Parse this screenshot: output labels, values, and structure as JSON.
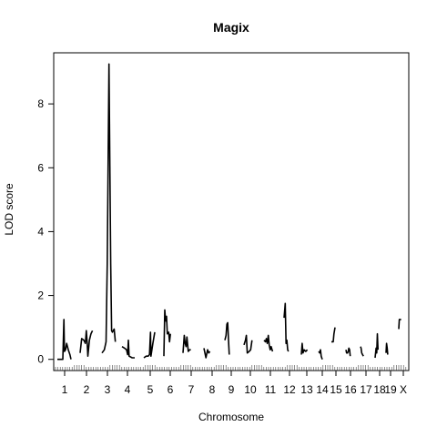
{
  "chart_data": {
    "type": "line",
    "title": "Magix",
    "xlabel": "Chromosome",
    "ylabel": "LOD score",
    "ylim": [
      -0.35,
      9.6
    ],
    "yticks": [
      0,
      2,
      4,
      6,
      8
    ],
    "grid": false,
    "chromosomes": [
      {
        "name": "1",
        "points": [
          [
            0.0,
            0.0
          ],
          [
            0.1,
            0.0
          ],
          [
            0.2,
            0.0
          ],
          [
            0.24,
            1.25
          ],
          [
            0.26,
            0.25
          ],
          [
            0.3,
            0.3
          ],
          [
            0.34,
            0.5
          ],
          [
            0.4,
            0.3
          ],
          [
            0.46,
            0.15
          ],
          [
            0.5,
            0.0
          ]
        ]
      },
      {
        "name": "2",
        "points": [
          [
            0.0,
            0.2
          ],
          [
            0.05,
            0.65
          ],
          [
            0.12,
            0.6
          ],
          [
            0.17,
            0.5
          ],
          [
            0.2,
            0.9
          ],
          [
            0.23,
            0.5
          ],
          [
            0.25,
            0.1
          ],
          [
            0.3,
            0.6
          ],
          [
            0.35,
            0.8
          ],
          [
            0.4,
            0.9
          ]
        ]
      },
      {
        "name": "3",
        "points": [
          [
            0.0,
            0.2
          ],
          [
            0.08,
            0.3
          ],
          [
            0.14,
            0.55
          ],
          [
            0.18,
            3.0
          ],
          [
            0.24,
            9.25
          ],
          [
            0.3,
            3.0
          ],
          [
            0.33,
            0.9
          ],
          [
            0.36,
            0.85
          ],
          [
            0.42,
            0.95
          ],
          [
            0.46,
            0.55
          ]
        ]
      },
      {
        "name": "4",
        "points": [
          [
            0.0,
            0.4
          ],
          [
            0.1,
            0.35
          ],
          [
            0.18,
            0.3
          ],
          [
            0.22,
            0.15
          ],
          [
            0.25,
            0.6
          ],
          [
            0.28,
            0.1
          ],
          [
            0.4,
            0.05
          ],
          [
            0.5,
            0.05
          ]
        ]
      },
      {
        "name": "5",
        "points": [
          [
            0.0,
            0.05
          ],
          [
            0.1,
            0.1
          ],
          [
            0.18,
            0.1
          ],
          [
            0.24,
            0.15
          ],
          [
            0.28,
            0.85
          ],
          [
            0.3,
            0.1
          ],
          [
            0.38,
            0.5
          ],
          [
            0.46,
            0.85
          ]
        ]
      },
      {
        "name": "6",
        "points": [
          [
            0.0,
            0.1
          ],
          [
            0.04,
            1.55
          ],
          [
            0.08,
            1.2
          ],
          [
            0.12,
            1.35
          ],
          [
            0.16,
            0.8
          ],
          [
            0.22,
            0.85
          ],
          [
            0.26,
            0.55
          ],
          [
            0.3,
            0.8
          ]
        ]
      },
      {
        "name": "7",
        "points": [
          [
            0.0,
            0.2
          ],
          [
            0.06,
            0.75
          ],
          [
            0.1,
            0.5
          ],
          [
            0.14,
            0.4
          ],
          [
            0.18,
            0.7
          ],
          [
            0.24,
            0.25
          ],
          [
            0.3,
            0.3
          ],
          [
            0.36,
            0.3
          ]
        ]
      },
      {
        "name": "8",
        "points": [
          [
            0.0,
            0.35
          ],
          [
            0.1,
            0.05
          ],
          [
            0.18,
            0.3
          ],
          [
            0.24,
            0.2
          ],
          [
            0.3,
            0.25
          ]
        ]
      },
      {
        "name": "9",
        "points": [
          [
            0.0,
            0.6
          ],
          [
            0.06,
            0.75
          ],
          [
            0.1,
            1.1
          ],
          [
            0.14,
            1.15
          ],
          [
            0.18,
            0.6
          ],
          [
            0.22,
            0.15
          ]
        ]
      },
      {
        "name": "10",
        "points": [
          [
            0.0,
            0.45
          ],
          [
            0.06,
            0.6
          ],
          [
            0.1,
            0.75
          ],
          [
            0.14,
            0.2
          ],
          [
            0.22,
            0.25
          ],
          [
            0.28,
            0.3
          ],
          [
            0.34,
            0.6
          ]
        ]
      },
      {
        "name": "11",
        "points": [
          [
            0.0,
            0.6
          ],
          [
            0.06,
            0.55
          ],
          [
            0.1,
            0.65
          ],
          [
            0.14,
            0.5
          ],
          [
            0.18,
            0.75
          ],
          [
            0.22,
            0.45
          ],
          [
            0.26,
            0.3
          ],
          [
            0.3,
            0.4
          ],
          [
            0.36,
            0.25
          ]
        ]
      },
      {
        "name": "12",
        "points": [
          [
            0.0,
            1.3
          ],
          [
            0.04,
            1.6
          ],
          [
            0.06,
            1.75
          ],
          [
            0.1,
            0.5
          ],
          [
            0.14,
            0.6
          ],
          [
            0.18,
            0.3
          ],
          [
            0.22,
            0.25
          ]
        ]
      },
      {
        "name": "13",
        "points": [
          [
            0.0,
            0.15
          ],
          [
            0.04,
            0.5
          ],
          [
            0.08,
            0.2
          ],
          [
            0.14,
            0.3
          ],
          [
            0.22,
            0.25
          ],
          [
            0.3,
            0.3
          ]
        ]
      },
      {
        "name": "14",
        "points": [
          [
            0.0,
            0.25
          ],
          [
            0.06,
            0.2
          ],
          [
            0.1,
            0.3
          ],
          [
            0.14,
            0.1
          ],
          [
            0.2,
            0.0
          ]
        ]
      },
      {
        "name": "15",
        "points": [
          [
            0.0,
            0.55
          ],
          [
            0.06,
            0.55
          ],
          [
            0.1,
            0.55
          ],
          [
            0.14,
            0.8
          ],
          [
            0.2,
            1.0
          ]
        ]
      },
      {
        "name": "16",
        "points": [
          [
            0.0,
            0.3
          ],
          [
            0.04,
            0.2
          ],
          [
            0.1,
            0.2
          ],
          [
            0.14,
            0.25
          ],
          [
            0.18,
            0.35
          ],
          [
            0.22,
            0.3
          ],
          [
            0.26,
            0.1
          ]
        ]
      },
      {
        "name": "17",
        "points": [
          [
            0.0,
            0.4
          ],
          [
            0.04,
            0.35
          ],
          [
            0.08,
            0.2
          ],
          [
            0.14,
            0.15
          ],
          [
            0.2,
            0.1
          ]
        ]
      },
      {
        "name": "18",
        "points": [
          [
            0.0,
            0.05
          ],
          [
            0.06,
            0.35
          ],
          [
            0.1,
            0.2
          ],
          [
            0.14,
            0.8
          ],
          [
            0.18,
            0.3
          ]
        ]
      },
      {
        "name": "19",
        "points": [
          [
            0.0,
            0.2
          ],
          [
            0.04,
            0.5
          ],
          [
            0.08,
            0.35
          ],
          [
            0.12,
            0.15
          ]
        ]
      },
      {
        "name": "X",
        "points": [
          [
            0.0,
            0.95
          ],
          [
            0.04,
            1.25
          ],
          [
            0.1,
            1.25
          ],
          [
            0.16,
            1.25
          ]
        ]
      }
    ]
  }
}
